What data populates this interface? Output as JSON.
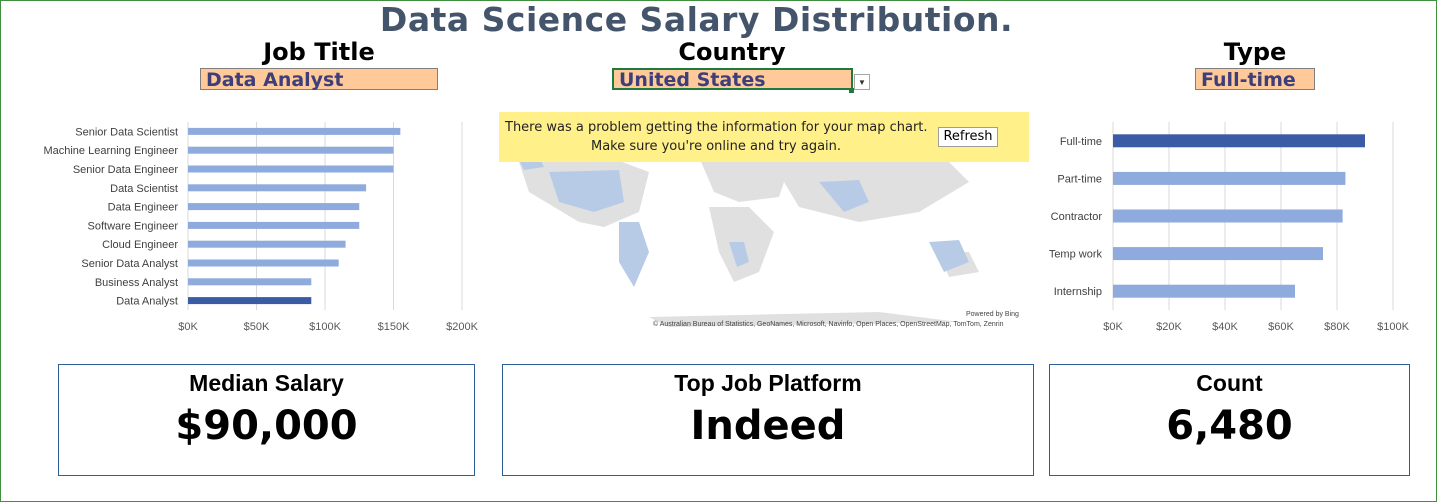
{
  "title": "Data Science Salary Distribution.",
  "filters": {
    "job_title": {
      "label": "Job Title",
      "value": "Data Analyst"
    },
    "country": {
      "label": "Country",
      "value": "United States"
    },
    "type": {
      "label": "Type",
      "value": "Full-time"
    }
  },
  "colors": {
    "title": "#44546a",
    "bar": "#8faadc",
    "bar_highlight": "#3b5ba5",
    "dropdown_fill": "#ffc999",
    "banner": "#fff08a",
    "card_border": "#2e5f99"
  },
  "map": {
    "error_line1": "There was a problem getting the information for your map chart.",
    "error_line2": "Make sure you're online and try again.",
    "refresh_label": "Refresh",
    "powered_by": "Powered by Bing",
    "copyright": "© Australian Bureau of Statistics, GeoNames, Microsoft, Navinfo, Open Places, OpenStreetMap, TomTom, Zenrin"
  },
  "chart_data": [
    {
      "type": "bar",
      "orientation": "horizontal",
      "categories": [
        "Senior Data Scientist",
        "Machine Learning Engineer",
        "Senior Data Engineer",
        "Data Scientist",
        "Data Engineer",
        "Software Engineer",
        "Cloud Engineer",
        "Senior Data Analyst",
        "Business Analyst",
        "Data Analyst"
      ],
      "values": [
        155000,
        150000,
        150000,
        130000,
        125000,
        125000,
        115000,
        110000,
        90000,
        90000
      ],
      "highlight": "Data Analyst",
      "xlim": [
        0,
        200000
      ],
      "xticks": [
        "$0K",
        "$50K",
        "$100K",
        "$150K",
        "$200K"
      ],
      "grid": true
    },
    {
      "type": "bar",
      "orientation": "horizontal",
      "categories": [
        "Full-time",
        "Part-time",
        "Contractor",
        "Temp work",
        "Internship"
      ],
      "values": [
        90000,
        83000,
        82000,
        75000,
        65000
      ],
      "highlight": "Full-time",
      "xlim": [
        0,
        100000
      ],
      "xticks": [
        "$0K",
        "$20K",
        "$40K",
        "$60K",
        "$80K",
        "$100K"
      ],
      "grid": true
    }
  ],
  "cards": {
    "median": {
      "label": "Median Salary",
      "value": "$90,000"
    },
    "platform": {
      "label": "Top Job Platform",
      "value": "Indeed"
    },
    "count": {
      "label": "Count",
      "value": "6,480"
    }
  }
}
